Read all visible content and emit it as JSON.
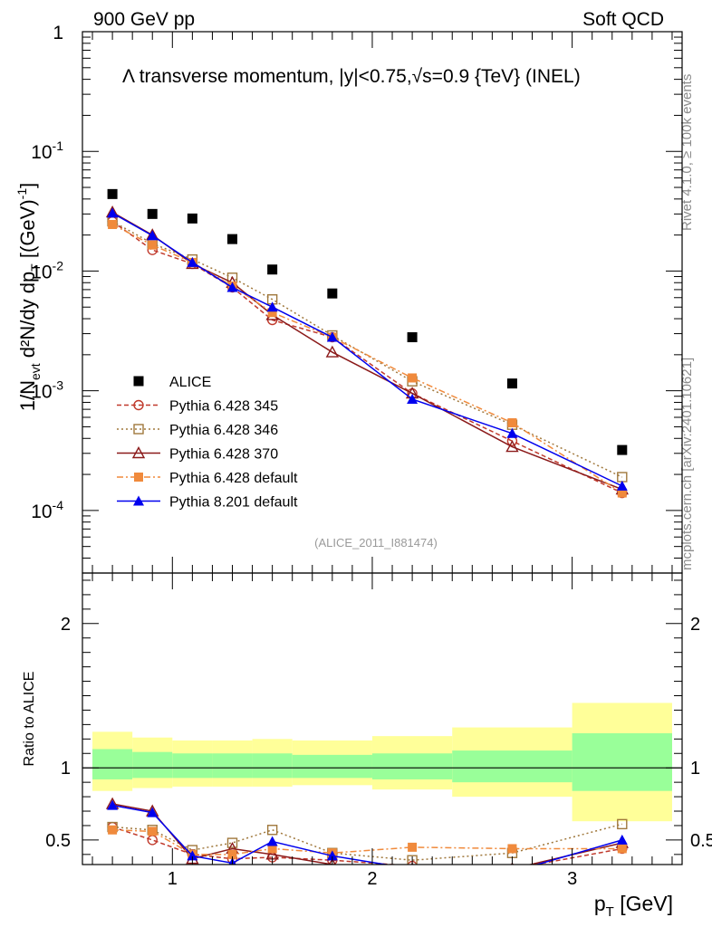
{
  "header": {
    "left": "900 GeV pp",
    "right": "Soft QCD"
  },
  "side": {
    "rivet": "Rivet 4.1.0, ≥ 100k events",
    "site": "mcplots.cern.ch [arXiv:2401.10621]"
  },
  "chart_data": [
    {
      "type": "scatter",
      "title": "Λ transverse momentum, |y|<0.75,√s=0.9 {TeV} (INEL)",
      "ylabel_main": "1/N",
      "ylabel_sub": "evt",
      "ylabel_rest": "d²N/dy dp",
      "ylabel_rest_sub": "T",
      "ylabel_unit": "[(GeV)",
      "ylabel_unit_sup": "-1",
      "ylabel_close": "]",
      "xlabel": "p",
      "xlabel_sub": "T",
      "xlabel_unit": "[GeV]",
      "analysis_tag": "(ALICE_2011_I881474)",
      "yscale": "log",
      "ylim": [
        3e-05,
        1
      ],
      "xlim": [
        0.55,
        3.55
      ],
      "yticks": [
        {
          "v": 1,
          "base": "1",
          "exp": ""
        },
        {
          "v": 0.1,
          "base": "10",
          "exp": "-1"
        },
        {
          "v": 0.01,
          "base": "10",
          "exp": "-2"
        },
        {
          "v": 0.001,
          "base": "10",
          "exp": "-3"
        },
        {
          "v": 0.0001,
          "base": "10",
          "exp": "-4"
        }
      ],
      "legend": [
        "ALICE",
        "Pythia 6.428 345",
        "Pythia 6.428 346",
        "Pythia 6.428 370",
        "Pythia 6.428 default",
        "Pythia 8.201 default"
      ],
      "series": [
        {
          "name": "ALICE",
          "color": "#000000",
          "marker": "square",
          "x": [
            0.7,
            0.9,
            1.1,
            1.3,
            1.5,
            1.8,
            2.2,
            2.7,
            3.25
          ],
          "y": [
            0.044,
            0.03,
            0.0275,
            0.0185,
            0.0103,
            0.0065,
            0.0028,
            0.00115,
            0.00032
          ]
        },
        {
          "name": "Pythia 6.428 345",
          "color": "#c0392b",
          "marker": "circle-open",
          "dash": "5,3",
          "x": [
            0.7,
            0.9,
            1.1,
            1.3,
            1.5,
            1.8,
            2.2,
            2.7,
            3.25
          ],
          "y": [
            0.026,
            0.015,
            0.0115,
            0.0073,
            0.0039,
            0.0028,
            0.00095,
            0.00038,
            0.00014
          ]
        },
        {
          "name": "Pythia 6.428 346",
          "color": "#a0783c",
          "marker": "square-open",
          "dash": "2,3",
          "x": [
            0.7,
            0.9,
            1.1,
            1.3,
            1.5,
            1.8,
            2.2,
            2.7,
            3.25
          ],
          "y": [
            0.026,
            0.017,
            0.0125,
            0.0088,
            0.0058,
            0.0029,
            0.0012,
            0.00052,
            0.00019
          ]
        },
        {
          "name": "Pythia 6.428 370",
          "color": "#8b1a1a",
          "marker": "triangle-open",
          "dash": "",
          "x": [
            0.7,
            0.9,
            1.1,
            1.3,
            1.5,
            1.8,
            2.2,
            2.7,
            3.25
          ],
          "y": [
            0.031,
            0.02,
            0.0115,
            0.008,
            0.0043,
            0.0021,
            0.00095,
            0.00034,
            0.00015
          ]
        },
        {
          "name": "Pythia 6.428 default",
          "color": "#f08a3c",
          "marker": "square-filled",
          "dash": "7,3,2,3",
          "x": [
            0.7,
            0.9,
            1.1,
            1.3,
            1.5,
            1.8,
            2.2,
            2.7,
            3.25
          ],
          "y": [
            0.0245,
            0.0165,
            0.0118,
            0.0075,
            0.0045,
            0.0028,
            0.00128,
            0.00054,
            0.00014
          ]
        },
        {
          "name": "Pythia 8.201 default",
          "color": "#0000ee",
          "marker": "triangle-filled",
          "dash": "",
          "x": [
            0.7,
            0.9,
            1.1,
            1.3,
            1.5,
            1.8,
            2.2,
            2.7,
            3.25
          ],
          "y": [
            0.0305,
            0.0198,
            0.0118,
            0.0073,
            0.005,
            0.0028,
            0.00085,
            0.00044,
            0.00016
          ]
        }
      ]
    },
    {
      "type": "scatter",
      "title": "Ratio to ALICE",
      "ylabel": "Ratio to ALICE",
      "ylim": [
        0.33,
        2.35
      ],
      "xlim": [
        0.55,
        3.55
      ],
      "yticks": [
        0.5,
        1,
        2
      ],
      "ytick_labels": [
        "0.5",
        "1",
        "2"
      ],
      "xticks": [
        1,
        2,
        3
      ],
      "xtick_labels": [
        "1",
        "2",
        "3"
      ],
      "bands": [
        {
          "x0": 0.6,
          "x1": 0.8,
          "y1_lo": 0.92,
          "y1_hi": 1.13,
          "y2_lo": 0.84,
          "y2_hi": 1.25
        },
        {
          "x0": 0.8,
          "x1": 1.0,
          "y1_lo": 0.93,
          "y1_hi": 1.11,
          "y2_lo": 0.86,
          "y2_hi": 1.21
        },
        {
          "x0": 1.0,
          "x1": 1.2,
          "y1_lo": 0.93,
          "y1_hi": 1.1,
          "y2_lo": 0.87,
          "y2_hi": 1.19
        },
        {
          "x0": 1.2,
          "x1": 1.4,
          "y1_lo": 0.93,
          "y1_hi": 1.1,
          "y2_lo": 0.87,
          "y2_hi": 1.19
        },
        {
          "x0": 1.4,
          "x1": 1.6,
          "y1_lo": 0.93,
          "y1_hi": 1.1,
          "y2_lo": 0.87,
          "y2_hi": 1.2
        },
        {
          "x0": 1.6,
          "x1": 2.0,
          "y1_lo": 0.93,
          "y1_hi": 1.09,
          "y2_lo": 0.88,
          "y2_hi": 1.19
        },
        {
          "x0": 2.0,
          "x1": 2.4,
          "y1_lo": 0.92,
          "y1_hi": 1.1,
          "y2_lo": 0.85,
          "y2_hi": 1.22
        },
        {
          "x0": 2.4,
          "x1": 3.0,
          "y1_lo": 0.9,
          "y1_hi": 1.12,
          "y2_lo": 0.8,
          "y2_hi": 1.28
        },
        {
          "x0": 3.0,
          "x1": 3.5,
          "y1_lo": 0.84,
          "y1_hi": 1.24,
          "y2_lo": 0.63,
          "y2_hi": 1.45
        }
      ],
      "band_colors": {
        "inner": "#99ff99",
        "outer": "#ffff99"
      },
      "series": [
        {
          "name": "Pythia 6.428 345",
          "x": [
            0.7,
            0.9,
            1.1,
            1.3,
            1.5,
            1.8,
            2.2,
            2.7,
            3.25
          ],
          "y": [
            0.59,
            0.5,
            0.4,
            0.37,
            0.38,
            0.36,
            0.32,
            0.3,
            0.44
          ]
        },
        {
          "name": "Pythia 6.428 346",
          "x": [
            0.7,
            0.9,
            1.1,
            1.3,
            1.5,
            1.8,
            2.2,
            2.7,
            3.25
          ],
          "y": [
            0.59,
            0.57,
            0.43,
            0.48,
            0.57,
            0.41,
            0.36,
            0.41,
            0.61
          ]
        },
        {
          "name": "Pythia 6.428 370",
          "x": [
            0.7,
            0.9,
            1.1,
            1.3,
            1.5,
            1.8,
            2.2,
            2.7,
            3.25
          ],
          "y": [
            0.75,
            0.7,
            0.37,
            0.44,
            0.4,
            0.33,
            0.3,
            0.3,
            0.48
          ]
        },
        {
          "name": "Pythia 6.428 default",
          "x": [
            0.7,
            0.9,
            1.1,
            1.3,
            1.5,
            1.8,
            2.2,
            2.7,
            3.25
          ],
          "y": [
            0.57,
            0.56,
            0.4,
            0.4,
            0.44,
            0.41,
            0.45,
            0.44,
            0.44
          ]
        },
        {
          "name": "Pythia 8.201 default",
          "x": [
            0.7,
            0.9,
            1.1,
            1.3,
            1.5,
            1.8,
            2.2,
            2.7,
            3.25
          ],
          "y": [
            0.74,
            0.69,
            0.39,
            0.34,
            0.49,
            0.39,
            0.3,
            0.28,
            0.5
          ]
        }
      ]
    }
  ]
}
